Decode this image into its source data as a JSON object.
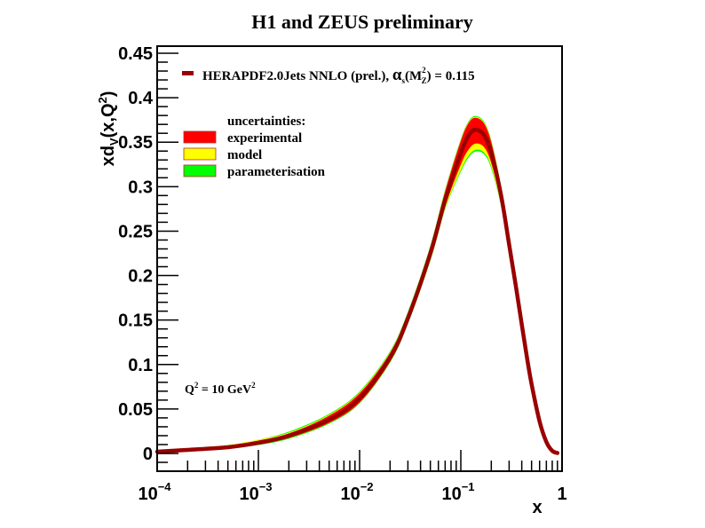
{
  "chart_data": {
    "type": "line",
    "title": "H1 and ZEUS preliminary",
    "xlabel": "x",
    "ylabel": "xd_V(x,Q^2)",
    "xscale": "log",
    "xlim": [
      0.0001,
      1
    ],
    "ylim": [
      -0.01,
      0.46
    ],
    "x_ticks": [
      {
        "base": "10",
        "exp": "−4"
      },
      {
        "base": "10",
        "exp": "−3"
      },
      {
        "base": "10",
        "exp": "−2"
      },
      {
        "base": "10",
        "exp": "−1"
      },
      {
        "base": "1",
        "exp": ""
      }
    ],
    "x_tick_values": [
      0.0001,
      0.001,
      0.01,
      0.1,
      1
    ],
    "y_ticks": [
      "0",
      "0.05",
      "0.1",
      "0.15",
      "0.2",
      "0.25",
      "0.3",
      "0.35",
      "0.4",
      "0.45"
    ],
    "y_tick_values": [
      0,
      0.05,
      0.1,
      0.15,
      0.2,
      0.25,
      0.3,
      0.35,
      0.4,
      0.45
    ],
    "grid": false,
    "annotation": {
      "text_prefix": "Q",
      "sup1": "2",
      "text_mid": " = 10 GeV",
      "sup2": "2"
    },
    "legend": {
      "placement": "top-left",
      "main_entry": {
        "label": "HERAPDF2.0Jets NNLO (prel.), ",
        "alpha": "α",
        "alpha_sub": "s",
        "alpha_arg_open": "(M",
        "alpha_arg_sup": "2",
        "alpha_arg_sub": "Z",
        "alpha_arg_close": ") = 0.115",
        "color": "#990000"
      },
      "uncertainties_title": "uncertainties:",
      "bands": [
        {
          "name": "experimental",
          "color": "#ff0000"
        },
        {
          "name": "model",
          "color": "#ffff00"
        },
        {
          "name": "parameterisation",
          "color": "#00ff00"
        }
      ]
    },
    "series": [
      {
        "name": "central",
        "color": "#990000",
        "x": [
          0.0001,
          0.0002,
          0.0005,
          0.001,
          0.002,
          0.005,
          0.01,
          0.02,
          0.03,
          0.05,
          0.07,
          0.1,
          0.12,
          0.14,
          0.17,
          0.2,
          0.25,
          0.3,
          0.35,
          0.4,
          0.45,
          0.5,
          0.6,
          0.7,
          0.8,
          0.9
        ],
        "y": [
          0.002,
          0.004,
          0.007,
          0.012,
          0.02,
          0.038,
          0.062,
          0.108,
          0.152,
          0.225,
          0.285,
          0.338,
          0.358,
          0.364,
          0.358,
          0.338,
          0.29,
          0.235,
          0.188,
          0.145,
          0.108,
          0.078,
          0.036,
          0.013,
          0.003,
          0.0005
        ]
      }
    ],
    "bands": [
      {
        "name": "parameterisation",
        "color": "#00ff00",
        "upper": [
          0.003,
          0.005,
          0.009,
          0.015,
          0.024,
          0.044,
          0.069,
          0.114,
          0.158,
          0.232,
          0.295,
          0.352,
          0.373,
          0.379,
          0.372,
          0.35,
          0.298,
          0.24,
          0.191,
          0.147,
          0.109,
          0.079,
          0.036,
          0.013,
          0.003,
          0.0005
        ],
        "lower": [
          0.001,
          0.003,
          0.006,
          0.01,
          0.017,
          0.034,
          0.057,
          0.103,
          0.147,
          0.218,
          0.276,
          0.318,
          0.334,
          0.34,
          0.337,
          0.322,
          0.28,
          0.229,
          0.185,
          0.143,
          0.107,
          0.077,
          0.035,
          0.013,
          0.003,
          0.0005
        ]
      },
      {
        "name": "model",
        "color": "#ffff00",
        "upper": [
          0.003,
          0.005,
          0.009,
          0.015,
          0.023,
          0.043,
          0.068,
          0.113,
          0.157,
          0.231,
          0.294,
          0.351,
          0.372,
          0.378,
          0.371,
          0.349,
          0.297,
          0.239,
          0.19,
          0.147,
          0.109,
          0.079,
          0.036,
          0.013,
          0.003,
          0.0005
        ],
        "lower": [
          0.0015,
          0.003,
          0.0065,
          0.011,
          0.018,
          0.035,
          0.058,
          0.104,
          0.148,
          0.219,
          0.277,
          0.32,
          0.336,
          0.342,
          0.339,
          0.324,
          0.281,
          0.23,
          0.185,
          0.143,
          0.107,
          0.077,
          0.035,
          0.013,
          0.003,
          0.0005
        ]
      },
      {
        "name": "experimental",
        "color": "#ff0000",
        "upper": [
          0.0025,
          0.0045,
          0.0085,
          0.014,
          0.022,
          0.042,
          0.067,
          0.112,
          0.156,
          0.23,
          0.293,
          0.35,
          0.371,
          0.377,
          0.37,
          0.348,
          0.296,
          0.239,
          0.19,
          0.146,
          0.109,
          0.079,
          0.036,
          0.013,
          0.003,
          0.0005
        ],
        "lower": [
          0.0015,
          0.0035,
          0.0065,
          0.011,
          0.018,
          0.035,
          0.058,
          0.104,
          0.148,
          0.22,
          0.279,
          0.326,
          0.343,
          0.349,
          0.345,
          0.328,
          0.284,
          0.231,
          0.186,
          0.144,
          0.107,
          0.077,
          0.035,
          0.013,
          0.003,
          0.0005
        ]
      }
    ]
  }
}
